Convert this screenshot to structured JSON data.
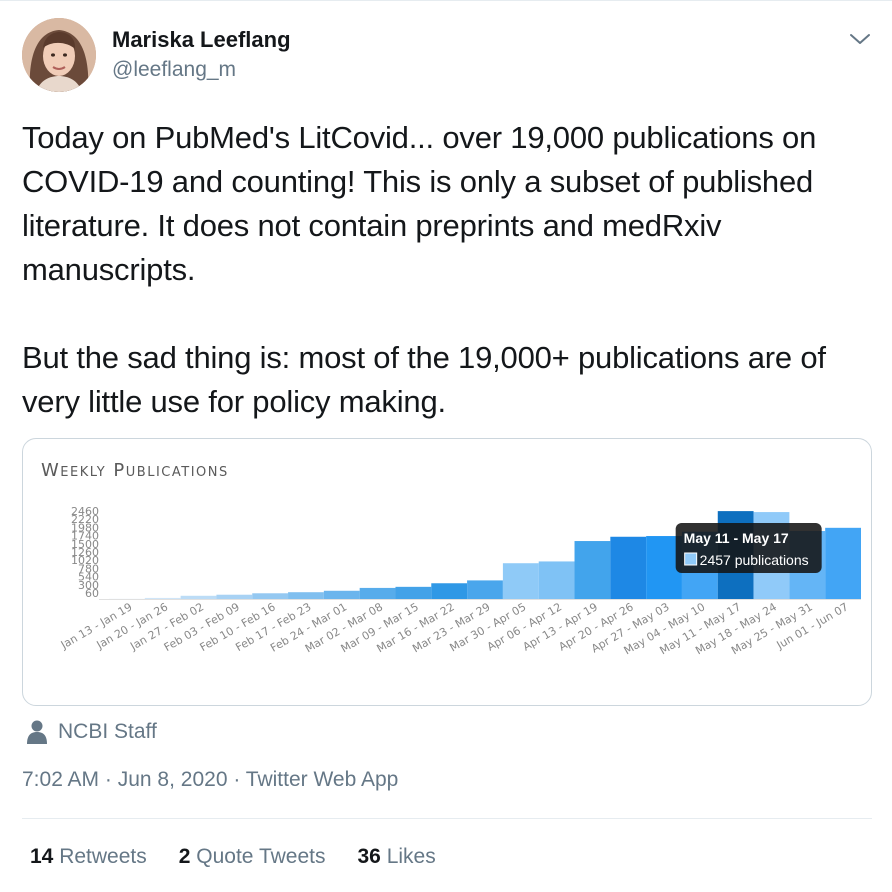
{
  "author": {
    "name": "Mariska Leeflang",
    "handle": "@leeflang_m"
  },
  "tweet": {
    "paragraphs": [
      "Today on PubMed's LitCovid... over 19,000 publications on COVID-19 and counting! This is only a subset of published literature. It does not contain preprints and medRxiv manuscripts.",
      "But the sad thing is: most of the 19,000+ publications are of very little use for policy making."
    ]
  },
  "chart_data": {
    "type": "bar",
    "title": "Weekly Publications",
    "categories": [
      "Jan 13 - Jan 19",
      "Jan 20 - Jan 26",
      "Jan 27 - Feb 02",
      "Feb 03 - Feb 09",
      "Feb 10 - Feb 16",
      "Feb 17 - Feb 23",
      "Feb 24 - Mar 01",
      "Mar 02 - Mar 08",
      "Mar 09 - Mar 15",
      "Mar 16 - Mar 22",
      "Mar 23 - Mar 29",
      "Mar 30 - Apr 05",
      "Apr 06 - Apr 12",
      "Apr 13 - Apr 19",
      "Apr 20 - Apr 26",
      "Apr 27 - May 03",
      "May 04 - May 10",
      "May 11 - May 17",
      "May 18 - May 24",
      "May 25 - May 31",
      "Jun 01 - Jun 07"
    ],
    "values": [
      5,
      30,
      90,
      120,
      160,
      190,
      230,
      310,
      340,
      440,
      520,
      1000,
      1050,
      1620,
      1740,
      1760,
      1880,
      2457,
      2430,
      1900,
      1990
    ],
    "ytick_labels": [
      "2460",
      "2220",
      "1980",
      "1740",
      "1500",
      "1260",
      "1020",
      "780",
      "540",
      "300",
      "60"
    ],
    "ylim": [
      0,
      2460
    ],
    "highlight_index": 17,
    "tooltip": {
      "title": "May 11 - May 17",
      "label": "2457 publications"
    },
    "colors": [
      "#e3f0fb",
      "#cfe5f8",
      "#bcdcf6",
      "#a8d2f4",
      "#94c8f1",
      "#80bfef",
      "#6bb5ed",
      "#57aceb",
      "#43a2e8",
      "#2f98e6",
      "#4aa6ec",
      "#8fcaf7",
      "#7fc2f5",
      "#42a4ec",
      "#1e88e5",
      "#2196f3",
      "#42a5f5",
      "#0d6fbf",
      "#90caf9",
      "#64b5f6",
      "#42a5f5"
    ]
  },
  "source": {
    "label": "NCBI Staff"
  },
  "meta": {
    "time": "7:02 AM",
    "date": "Jun 8, 2020",
    "via": "Twitter Web App"
  },
  "stats": [
    {
      "count": "14",
      "label": "Retweets"
    },
    {
      "count": "2",
      "label": "Quote Tweets"
    },
    {
      "count": "36",
      "label": "Likes"
    }
  ]
}
